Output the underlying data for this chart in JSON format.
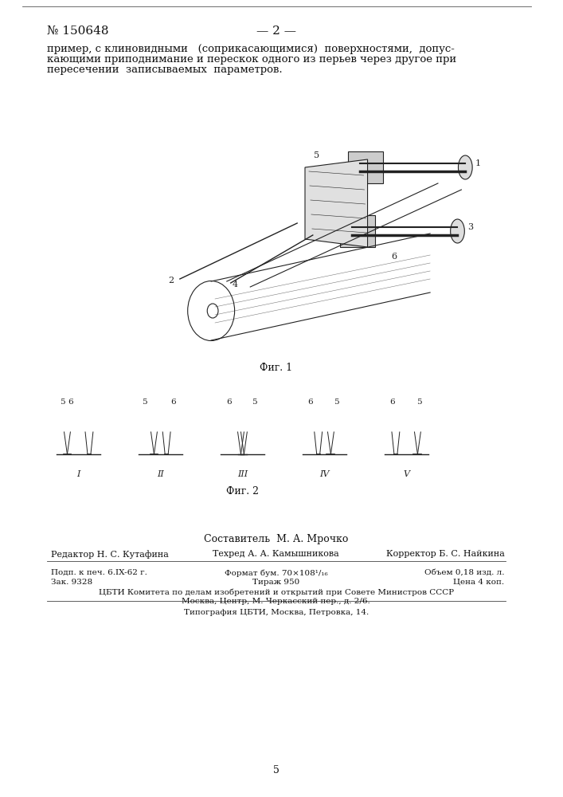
{
  "bg_color": "#ffffff",
  "patent_number": "№ 150648",
  "page_number": "— 2 —",
  "body_text_line1": "пример, с клиновидными   (соприкасающимися)  поверхностями,  допус-",
  "body_text_line2": "кающими приподнимание и перескок одного из перьев через другое при",
  "body_text_line3": "пересечении  записываемых  параметров.",
  "fig1_caption": "Фиг. 1",
  "fig2_caption": "Фиг. 2",
  "fig2_labels_top": [
    "5",
    "6",
    "5",
    "6",
    "6",
    "5",
    "6",
    "5",
    "6",
    "5"
  ],
  "fig2_labels_bottom": [
    "I",
    "II",
    "III",
    "IV",
    "V"
  ],
  "composer_line": "Составитель  М. А. Мрочко",
  "editor_label": "Редактор",
  "editor_name": "Н. С. Кутафина",
  "tech_label": "Техред",
  "tech_name": "А. А. Камышникова",
  "corrector_label": "Корректор",
  "corrector_name": "Б. С. Найкина",
  "info_line1_left": "Подп. к печ. 6.IX-62 г.",
  "info_line1_mid": "Формат бум. 70×108¹/₁₆",
  "info_line1_right": "Объем 0,18 изд. л.",
  "info_line2_left": "Зак. 9328",
  "info_line2_mid": "Тираж 950",
  "info_line2_right": "Цена 4 коп.",
  "cbti_line1": "ЦБТИ Комитета по делам изобретений и открытий при Совете Министров СССР",
  "cbti_line2": "Москва, Центр, М. Черкасский пер., д. 2/6.",
  "typo_line": "Типография ЦБТИ, Москва, Петровка, 14.",
  "page_num": "5",
  "font_size_header": 11,
  "font_size_body": 9.5,
  "font_size_caption": 9,
  "font_size_small": 8
}
